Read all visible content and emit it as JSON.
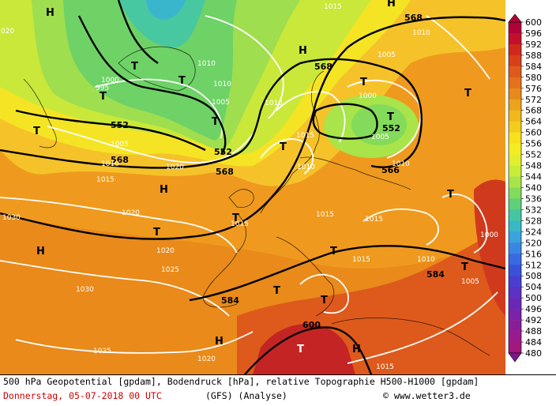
{
  "map": {
    "geopotential_labels": [
      "568",
      "568",
      "552",
      "552",
      "568",
      "552",
      "568",
      "566",
      "584",
      "584",
      "600"
    ],
    "pressure_labels": [
      "1015",
      "1010",
      "1005",
      "1010",
      "1010",
      "1000",
      "995",
      "1005",
      "1010",
      "1015",
      "1005",
      "1000",
      "1005",
      "1010",
      "1010",
      "1010",
      "1020",
      "1015",
      "1020",
      "1020",
      "1030",
      "1025",
      "1030",
      "1015",
      "1015",
      "1015",
      "1010",
      "1015",
      "1000",
      "1005",
      "1025",
      "1020",
      "1015",
      "020"
    ],
    "highs": [
      "H",
      "H",
      "H",
      "H",
      "H",
      "H",
      "H"
    ],
    "lows": [
      "T",
      "T",
      "T",
      "T",
      "T",
      "T",
      "T",
      "T",
      "T",
      "T",
      "T",
      "T",
      "T",
      "T",
      "T",
      "T"
    ]
  },
  "colorbar": {
    "labels": [
      "600",
      "596",
      "592",
      "588",
      "584",
      "580",
      "576",
      "572",
      "568",
      "564",
      "560",
      "556",
      "552",
      "548",
      "544",
      "540",
      "536",
      "532",
      "528",
      "524",
      "520",
      "516",
      "512",
      "508",
      "504",
      "500",
      "496",
      "492",
      "488",
      "484",
      "480"
    ],
    "colors": [
      "#b0003a",
      "#c2102c",
      "#d0281c",
      "#d8401c",
      "#de5a1c",
      "#e2721c",
      "#e68a1c",
      "#eca21c",
      "#f0b81c",
      "#f4cc1c",
      "#f8e01c",
      "#f4ec20",
      "#e2ee2c",
      "#c8ec3a",
      "#a8e44a",
      "#84da5a",
      "#5ed07a",
      "#44c6a2",
      "#3ab8c4",
      "#3aa2dc",
      "#3a86e2",
      "#3a6ae0",
      "#3a52d8",
      "#4a3ed0",
      "#5a32c4",
      "#6a28b6",
      "#7a22a8",
      "#8a1e9a",
      "#981a8c",
      "#a2187e",
      "#7a1a8c"
    ]
  },
  "footer": {
    "line1": "500 hPa Geopotential [gpdam], Bodendruck [hPa], relative Topographie H500-H1000 [gpdam]",
    "date": "Donnerstag, 05-07-2018  00 UTC",
    "model": "(GFS)  (Analyse)",
    "copyright": "© www.wetter3.de"
  }
}
